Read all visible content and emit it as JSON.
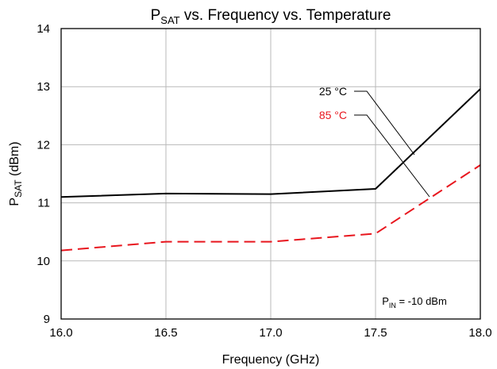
{
  "chart_data": {
    "type": "line",
    "title": {
      "main": "P",
      "sub": "SAT",
      "rest": " vs. Frequency vs. Temperature"
    },
    "xlabel": "Frequency (GHz)",
    "ylabel": {
      "main": "P",
      "sub": "SAT",
      "rest": " (dBm)"
    },
    "xlim": [
      16.0,
      18.0
    ],
    "ylim": [
      9,
      14
    ],
    "x_ticks": [
      "16.0",
      "16.5",
      "17.0",
      "17.5",
      "18.0"
    ],
    "y_ticks": [
      "9",
      "10",
      "11",
      "12",
      "13",
      "14"
    ],
    "grid": true,
    "series": [
      {
        "name": "25 °C",
        "color": "#000000",
        "dash": "solid",
        "x": [
          16.0,
          16.5,
          17.0,
          17.5,
          18.0
        ],
        "y": [
          11.1,
          11.16,
          11.15,
          11.24,
          12.96
        ]
      },
      {
        "name": "85 °C",
        "color": "#e8161e",
        "dash": "dashed",
        "x": [
          16.0,
          16.5,
          17.0,
          17.5,
          18.0
        ],
        "y": [
          10.18,
          10.33,
          10.33,
          10.47,
          11.65
        ]
      }
    ],
    "annotation": {
      "main": "P",
      "sub": "IN",
      "rest": " = -10 dBm"
    }
  }
}
